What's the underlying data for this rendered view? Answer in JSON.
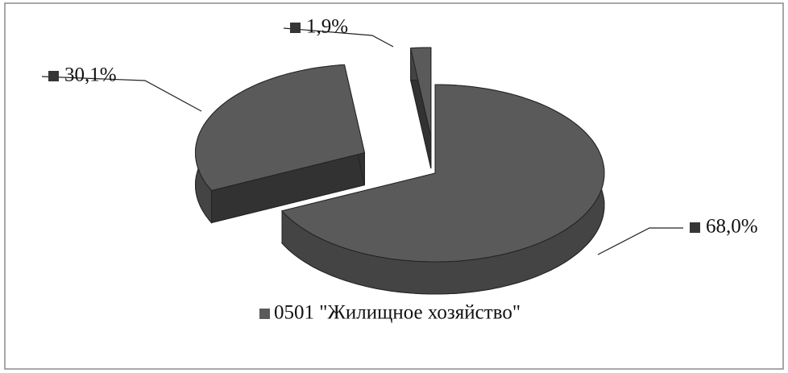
{
  "chart_data": {
    "type": "pie",
    "categories": [
      "0501 \"Жилищное хозяйство\"",
      null,
      null
    ],
    "values": [
      68.0,
      30.1,
      1.9
    ],
    "value_labels": [
      "68,0%",
      "30,1%",
      "1,9%"
    ],
    "colors": [
      "#5a5a5a",
      "#5a5a5a",
      "#5a5a5a"
    ],
    "legend": "bottom"
  }
}
